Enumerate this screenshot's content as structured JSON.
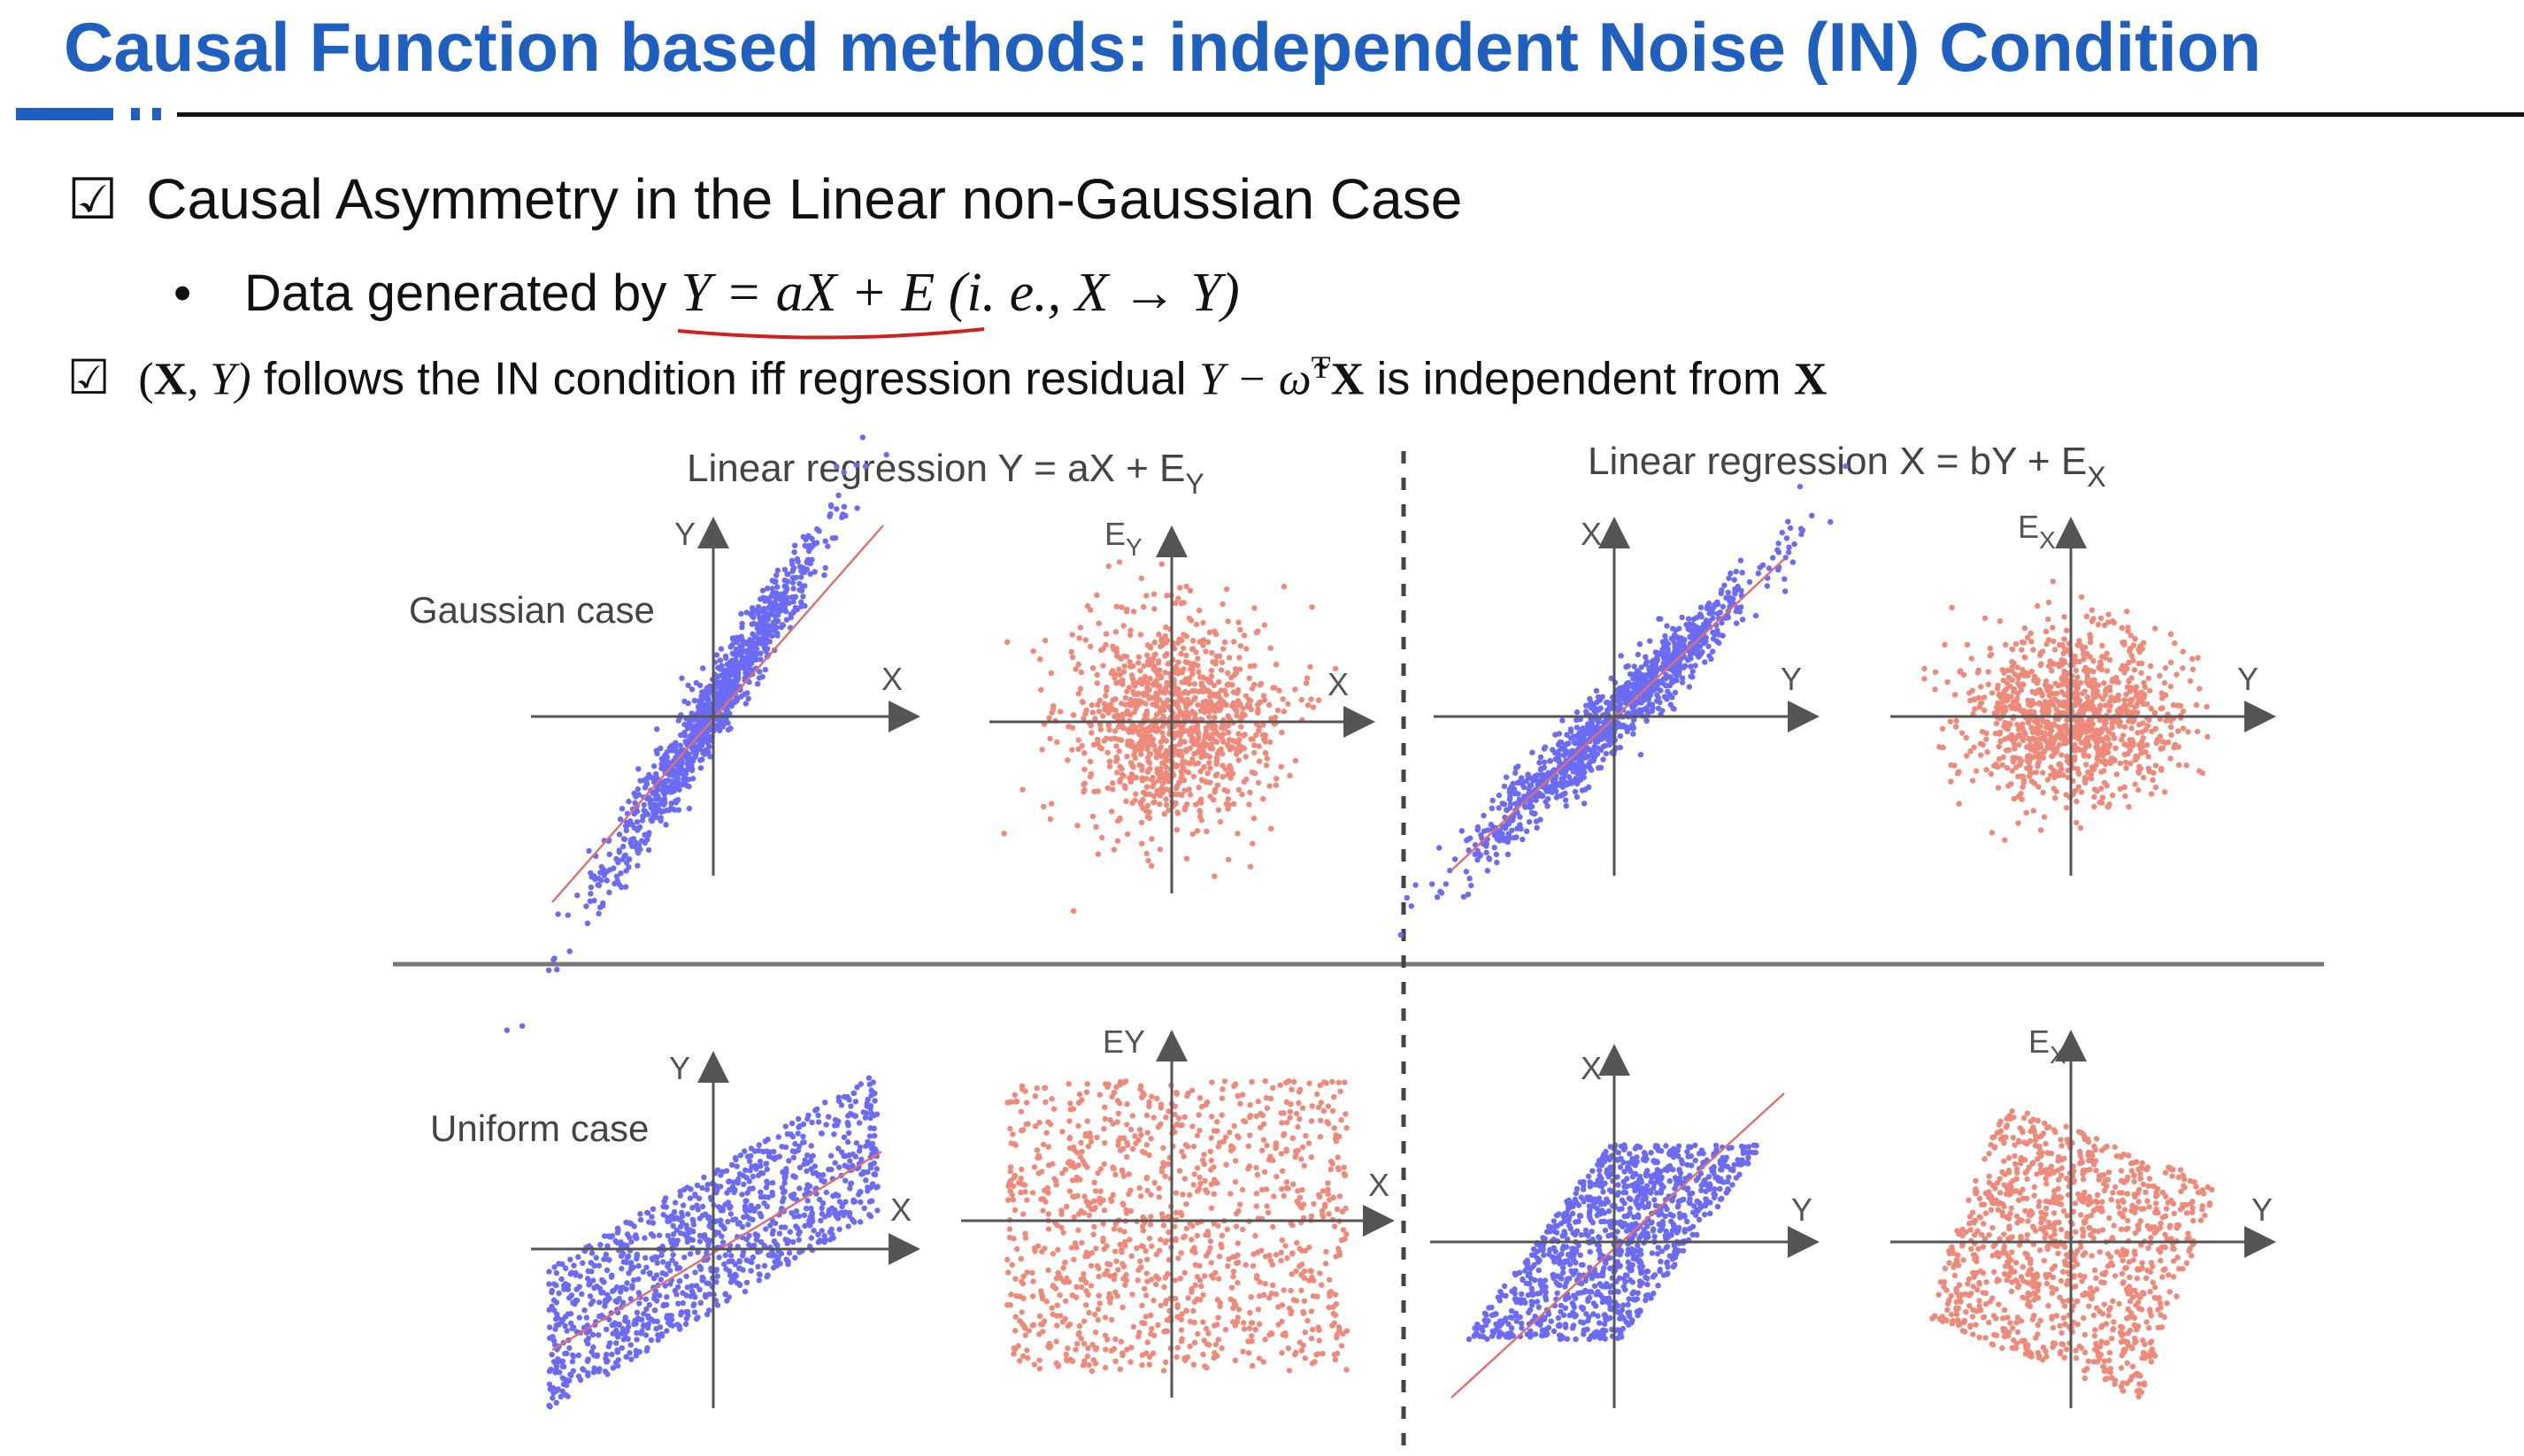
{
  "slide": {
    "title": "Causal Function based methods: independent Noise (IN) Condition",
    "check_symbol": "☑",
    "item1": "Causal Asymmetry in the Linear non-Gaussian Case",
    "bullet_symbol": "•",
    "item1_sub_prefix": "Data generated by ",
    "item1_sub_math": "Y = aX + E",
    "item1_sub_math2": " (i. e., X → Y)",
    "item2_math_open": "(",
    "item2_math_X": "X",
    "item2_math_rest": ", Y)",
    "item2_text": " follows the IN condition iff regression residual ",
    "item2_residual": "Y − ω̃",
    "item2_T": "T",
    "item2_X2": "X",
    "item2_text2": " is independent from ",
    "item2_X3": "X"
  },
  "figure": {
    "header_left": "Linear regression Y = aX + E",
    "header_left_sub": "Y",
    "header_right": "Linear regression X = bY + E",
    "header_right_sub": "X",
    "row_labels": [
      "Gaussian case",
      "Uniform case"
    ],
    "colors": {
      "regression_points": "#6b6bf5",
      "residual_points": "#ef8a7a",
      "fit_line": "#e06f6f"
    },
    "panels": [
      {
        "row": "Gaussian",
        "kind": "regression",
        "x_label": "X",
        "y_label": "Y"
      },
      {
        "row": "Gaussian",
        "kind": "residual",
        "x_label": "X",
        "y_label": "E",
        "y_label_sub": "Y"
      },
      {
        "row": "Gaussian",
        "kind": "regression",
        "x_label": "Y",
        "y_label": "X"
      },
      {
        "row": "Gaussian",
        "kind": "residual",
        "x_label": "Y",
        "y_label": "E",
        "y_label_sub": "X"
      },
      {
        "row": "Uniform",
        "kind": "regression",
        "x_label": "X",
        "y_label": "Y"
      },
      {
        "row": "Uniform",
        "kind": "residual",
        "x_label": "X",
        "y_label": "EY"
      },
      {
        "row": "Uniform",
        "kind": "regression",
        "x_label": "Y",
        "y_label": "X"
      },
      {
        "row": "Uniform",
        "kind": "residual",
        "x_label": "Y",
        "y_label": "E",
        "y_label_sub": "X"
      }
    ]
  }
}
